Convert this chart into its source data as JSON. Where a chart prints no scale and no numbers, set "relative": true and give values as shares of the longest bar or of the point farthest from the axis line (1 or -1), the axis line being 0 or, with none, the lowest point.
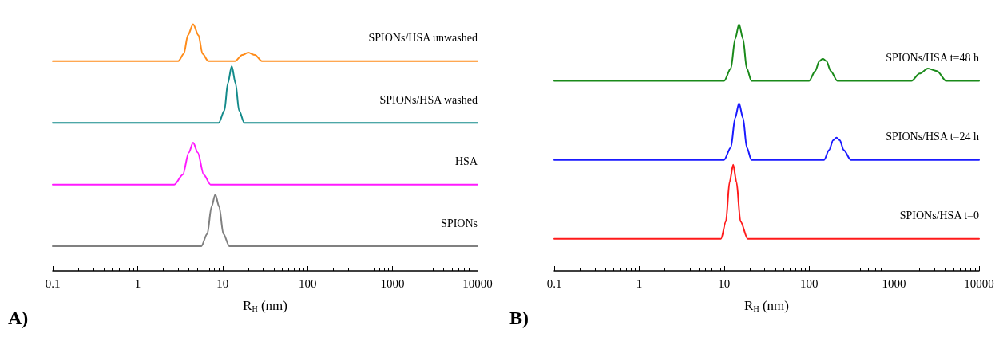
{
  "chart_data": [
    {
      "type": "line",
      "relative": true,
      "xlabel": "R$_{H}$ (nm)",
      "log": "x",
      "xlim": [
        0.1,
        10000
      ],
      "xticks": [
        0.1,
        1,
        10,
        100,
        1000,
        10000
      ],
      "grid": false,
      "marker": "none",
      "line_style": "solid",
      "annotations": [
        "A)"
      ],
      "series": [
        {
          "name": "SPIONs/HSA unwashed",
          "color": "#ff8c1a",
          "x": [
            0.1,
            3.0,
            3.5,
            3.9,
            4.5,
            5.2,
            5.8,
            6.8,
            14,
            17,
            20,
            24,
            29,
            10000
          ],
          "values": [
            0.85,
            0.85,
            0.88,
            0.955,
            1,
            0.955,
            0.88,
            0.85,
            0.85,
            0.875,
            0.885,
            0.875,
            0.85,
            0.85
          ]
        },
        {
          "name": "SPIONs/HSA washed",
          "color": "#138a8a",
          "x": [
            0.1,
            9.0,
            10.5,
            11.5,
            12.8,
            14.2,
            15.6,
            18,
            10000
          ],
          "values": [
            0.6,
            0.6,
            0.65,
            0.76,
            0.83,
            0.76,
            0.65,
            0.6,
            0.6
          ]
        },
        {
          "name": "HSA",
          "color": "#ff1aff",
          "x": [
            0.1,
            2.7,
            3.4,
            4.0,
            4.5,
            5.1,
            6.0,
            7.2,
            10000
          ],
          "values": [
            0.35,
            0.35,
            0.39,
            0.48,
            0.52,
            0.48,
            0.39,
            0.35,
            0.35
          ]
        },
        {
          "name": "SPIONs",
          "color": "#808080",
          "x": [
            0.1,
            5.6,
            6.6,
            7.4,
            8.2,
            9.1,
            10.2,
            12,
            10000
          ],
          "values": [
            0.1,
            0.1,
            0.15,
            0.26,
            0.31,
            0.26,
            0.15,
            0.1,
            0.1
          ]
        }
      ]
    },
    {
      "type": "line",
      "relative": true,
      "xlabel": "R$_{H}$ (nm)",
      "log": "x",
      "xlim": [
        0.1,
        10000
      ],
      "xticks": [
        0.1,
        1,
        10,
        100,
        1000,
        10000
      ],
      "grid": false,
      "marker": "none",
      "line_style": "solid",
      "annotations": [
        "B)"
      ],
      "series": [
        {
          "name": "SPIONs/HSA t=48 h",
          "color": "#1a8a1a",
          "x": [
            0.1,
            10,
            12,
            13.5,
            15,
            16.7,
            18.5,
            21,
            100,
            118,
            132,
            145,
            160,
            180,
            215,
            1600,
            2000,
            2500,
            3200,
            4100,
            10000
          ],
          "values": [
            0.77,
            0.77,
            0.82,
            0.94,
            1,
            0.94,
            0.82,
            0.77,
            0.77,
            0.81,
            0.85,
            0.86,
            0.85,
            0.81,
            0.77,
            0.77,
            0.8,
            0.82,
            0.81,
            0.77,
            0.77
          ]
        },
        {
          "name": "SPIONs/HSA t=24 h",
          "color": "#1a1aff",
          "x": [
            0.1,
            10,
            12,
            13.5,
            15,
            16.7,
            18.5,
            21,
            150,
            172,
            192,
            210,
            230,
            255,
            310,
            10000
          ],
          "values": [
            0.45,
            0.45,
            0.5,
            0.62,
            0.68,
            0.62,
            0.5,
            0.45,
            0.45,
            0.49,
            0.53,
            0.54,
            0.53,
            0.49,
            0.45,
            0.45
          ]
        },
        {
          "name": "SPIONs/HSA t=0",
          "color": "#ff1a1a",
          "x": [
            0.1,
            9.2,
            10.5,
            11.6,
            12.8,
            14,
            15.6,
            19,
            10000
          ],
          "values": [
            0.13,
            0.13,
            0.2,
            0.36,
            0.43,
            0.36,
            0.2,
            0.13,
            0.13
          ]
        }
      ]
    }
  ]
}
